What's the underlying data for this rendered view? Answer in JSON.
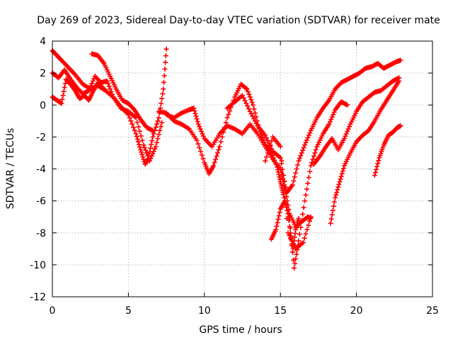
{
  "chart_data": {
    "type": "scatter",
    "title": "Day 269 of 2023, Sidereal Day-to-day VTEC variation (SDTVAR) for receiver mate",
    "xlabel": "GPS time / hours",
    "ylabel": "SDTVAR / TECUs",
    "xlim": [
      0,
      25
    ],
    "ylim": [
      -12,
      4
    ],
    "xticks": [
      0,
      5,
      10,
      15,
      20,
      25
    ],
    "yticks": [
      4,
      2,
      0,
      -2,
      -4,
      -6,
      -8,
      -10,
      -12
    ],
    "grid": true,
    "marker": "+",
    "color": "#ff0000",
    "series": [
      {
        "x": [
          0.0,
          0.3,
          0.6,
          1.0,
          1.5,
          2.0,
          2.5,
          3.0,
          3.5,
          4.0,
          4.5,
          5.0,
          5.5,
          5.8,
          6.1,
          6.3,
          6.6,
          7.0,
          7.3,
          7.5
        ],
        "y": [
          3.4,
          3.1,
          2.8,
          2.4,
          1.9,
          1.3,
          1.0,
          1.2,
          0.9,
          0.5,
          -0.1,
          -0.6,
          -1.8,
          -2.8,
          -3.7,
          -3.4,
          -2.0,
          -0.8,
          1.0,
          3.5
        ]
      },
      {
        "x": [
          0.0,
          0.4,
          0.8,
          1.2,
          1.6,
          2.0,
          2.4,
          2.8,
          3.2,
          3.6,
          4.0,
          4.5,
          5.0,
          5.5,
          6.0,
          6.4,
          6.8,
          7.2
        ],
        "y": [
          2.0,
          1.7,
          2.2,
          1.6,
          1.1,
          0.7,
          0.9,
          1.8,
          1.4,
          1.5,
          0.5,
          -0.2,
          -0.4,
          -0.8,
          -2.5,
          -3.5,
          -2.6,
          -1.1
        ]
      },
      {
        "x": [
          0.0,
          0.3,
          0.6,
          0.9,
          1.2,
          1.5,
          1.8,
          2.1,
          2.4,
          2.7,
          3.0,
          3.4
        ],
        "y": [
          0.5,
          0.3,
          0.1,
          1.6,
          1.3,
          0.9,
          0.4,
          0.6,
          0.3,
          0.9,
          1.4,
          1.0
        ]
      },
      {
        "x": [
          2.6,
          3.0,
          3.4,
          3.8,
          4.2,
          4.6,
          5.0,
          5.4,
          5.8,
          6.2,
          6.6
        ],
        "y": [
          3.2,
          3.1,
          2.6,
          1.8,
          1.0,
          0.3,
          0.1,
          -0.3,
          -0.9,
          -1.4,
          -1.6
        ]
      },
      {
        "x": [
          7.0,
          7.5,
          8.0,
          8.5,
          9.0,
          9.5,
          10.0,
          10.3,
          10.6,
          11.0,
          11.5,
          12.0,
          12.4,
          12.8,
          13.2,
          13.6,
          14.0,
          14.4,
          14.8,
          15.0,
          15.2,
          15.5,
          15.8,
          16.0,
          16.2
        ],
        "y": [
          -0.4,
          -0.5,
          -1.0,
          -1.2,
          -1.5,
          -2.2,
          -3.6,
          -4.3,
          -3.8,
          -2.6,
          -0.8,
          0.5,
          1.3,
          1.0,
          0.0,
          -1.5,
          -2.5,
          -3.0,
          -3.9,
          -4.8,
          -5.6,
          -6.8,
          -9.2,
          -7.8,
          -7.1
        ]
      },
      {
        "x": [
          7.5,
          8.0,
          8.5,
          9.0,
          9.3,
          9.6,
          10.0,
          10.5,
          11.0,
          11.5,
          12.0,
          12.5,
          13.0,
          13.5,
          14.0,
          14.5,
          15.0,
          15.3,
          15.6,
          16.0,
          16.4,
          16.8,
          17.0
        ],
        "y": [
          -0.6,
          -0.8,
          -0.5,
          -0.3,
          -0.2,
          -1.2,
          -2.1,
          -2.6,
          -1.8,
          -1.3,
          -1.5,
          -1.8,
          -1.2,
          -1.8,
          -2.6,
          -3.4,
          -4.0,
          -5.2,
          -6.8,
          -7.6,
          -7.3,
          -7.0,
          -7.1
        ]
      },
      {
        "x": [
          11.5,
          12.0,
          12.5,
          13.0,
          13.5,
          14.0,
          14.5,
          15.0,
          15.4,
          15.8,
          16.2,
          16.6,
          17.0,
          17.4,
          17.8,
          18.2,
          18.6,
          19.0,
          19.4,
          19.8,
          20.2,
          20.6,
          21.0,
          21.4,
          21.8,
          22.2,
          22.6,
          22.9
        ],
        "y": [
          -0.2,
          0.2,
          0.6,
          -0.4,
          -1.3,
          -1.9,
          -2.9,
          -3.3,
          -5.5,
          -5.0,
          -3.5,
          -2.5,
          -1.6,
          -0.8,
          -0.2,
          0.3,
          1.0,
          1.4,
          1.6,
          1.8,
          2.0,
          2.3,
          2.4,
          2.6,
          2.3,
          2.5,
          2.7,
          2.8
        ]
      },
      {
        "x": [
          14.4,
          14.7,
          15.0,
          15.3,
          15.6,
          15.9,
          16.2,
          16.6,
          17.0,
          17.4,
          17.8,
          18.2,
          18.6,
          19.0,
          19.4
        ],
        "y": [
          -8.4,
          -7.8,
          -6.5,
          -6.0,
          -7.2,
          -10.2,
          -8.5,
          -6.0,
          -3.8,
          -2.6,
          -1.8,
          -1.2,
          -0.3,
          0.2,
          0.0
        ]
      },
      {
        "x": [
          17.2,
          17.6,
          18.0,
          18.4,
          18.8,
          19.2,
          19.6,
          20.0,
          20.4,
          20.8,
          21.2,
          21.6,
          22.0,
          22.4,
          22.8
        ],
        "y": [
          -3.7,
          -3.2,
          -2.6,
          -2.1,
          -2.8,
          -2.1,
          -1.2,
          -0.4,
          0.2,
          0.5,
          0.8,
          0.9,
          1.2,
          1.5,
          1.7
        ]
      },
      {
        "x": [
          18.3,
          18.6,
          18.9,
          19.2,
          19.6,
          20.0,
          20.4,
          20.8,
          21.2,
          21.6,
          22.0,
          22.4,
          22.8
        ],
        "y": [
          -7.4,
          -5.8,
          -4.8,
          -3.8,
          -3.0,
          -2.3,
          -1.9,
          -1.6,
          -1.0,
          -0.3,
          0.3,
          0.9,
          1.5
        ]
      },
      {
        "x": [
          14.0,
          14.5,
          15.0,
          15.5,
          16.0,
          16.5,
          17.0
        ],
        "y": [
          -3.5,
          -2.0,
          -2.6,
          -8.0,
          -9.0,
          -8.6,
          -7.0
        ]
      },
      {
        "x": [
          21.2,
          21.5,
          21.8,
          22.1,
          22.4,
          22.7,
          22.9
        ],
        "y": [
          -4.4,
          -3.3,
          -2.5,
          -1.9,
          -1.7,
          -1.4,
          -1.3
        ]
      }
    ]
  }
}
